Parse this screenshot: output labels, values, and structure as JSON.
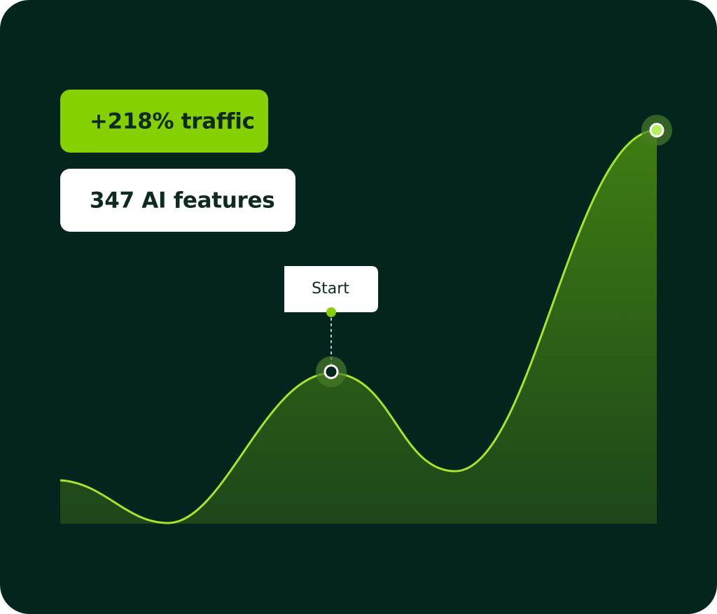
{
  "badges": {
    "traffic": "+218% traffic",
    "features": "347 AI features"
  },
  "marker": {
    "label": "Start"
  }
}
